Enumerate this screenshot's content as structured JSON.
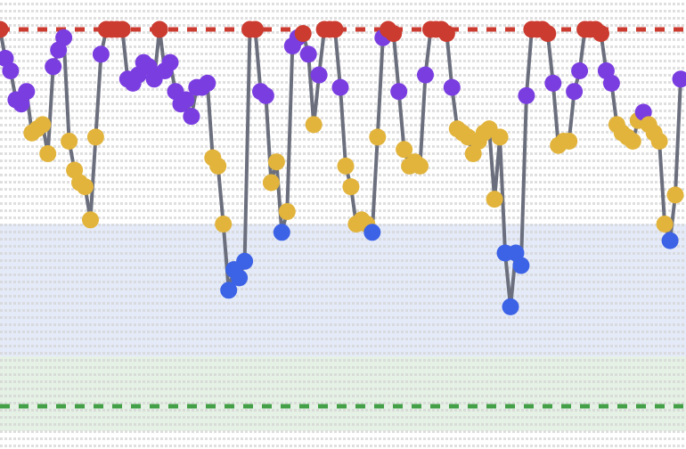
{
  "chart_data": {
    "type": "line",
    "title": "",
    "xlabel": "",
    "ylabel": "",
    "grid": false,
    "xlim": [
      0,
      128
    ],
    "ylim": [
      0,
      100
    ],
    "bands": [
      {
        "name": "blue-zone",
        "from": 18,
        "to": 50,
        "color": "#dfe6f7"
      },
      {
        "name": "green-zone",
        "from": 0,
        "to": 18,
        "color": "#e0efdf"
      }
    ],
    "reference_lines": [
      {
        "name": "upper-threshold",
        "y": 97,
        "color": "#cc3b30"
      },
      {
        "name": "lower-threshold",
        "y": 6,
        "color": "#43a047"
      }
    ],
    "category_colors": {
      "top": "#cc3b30",
      "high": "#7a3de0",
      "mid": "#e2b43c",
      "low": "#3c62e6",
      "bottom": "#43a047"
    },
    "line_color": "#6b6f7d",
    "series": [
      {
        "name": "series-1",
        "x": [
          0,
          1,
          2,
          3,
          4,
          5,
          6,
          7,
          8,
          9,
          10,
          11,
          12,
          13,
          14,
          15,
          16,
          17,
          18,
          19,
          20,
          21,
          22,
          23,
          24,
          25,
          26,
          27,
          28,
          29,
          30,
          31,
          32,
          33,
          34,
          35,
          36,
          37,
          38,
          39,
          40,
          41,
          42,
          43,
          44,
          45,
          46,
          47,
          48,
          49,
          50,
          51,
          52,
          53,
          54,
          55,
          56,
          57,
          58,
          59,
          60,
          61,
          62,
          63,
          64,
          65,
          66,
          67,
          68,
          69,
          70,
          71,
          72,
          73,
          74,
          75,
          76,
          77,
          78,
          79,
          80,
          81,
          82,
          83,
          84,
          85,
          86,
          87,
          88,
          89,
          90,
          91,
          92,
          93,
          94,
          95,
          96,
          97,
          98,
          99,
          100,
          101,
          102,
          103,
          104,
          105,
          106,
          107,
          108,
          109,
          110,
          111,
          112,
          113,
          114,
          115,
          116,
          117,
          118,
          119,
          120,
          121,
          122,
          123,
          124,
          125,
          126,
          127,
          128
        ],
        "y": [
          97,
          90,
          87,
          80,
          79,
          82,
          72,
          73,
          74,
          67,
          88,
          92,
          95,
          70,
          63,
          60,
          59,
          51,
          71,
          91,
          97,
          97,
          97,
          97,
          85,
          84,
          86,
          89,
          88,
          85,
          97,
          87,
          89,
          82,
          79,
          80,
          76,
          83,
          83,
          84,
          66,
          64,
          50,
          34,
          39,
          37,
          41,
          97,
          97,
          82,
          81,
          60,
          65,
          48,
          53,
          93,
          95,
          96,
          91,
          74,
          86,
          97,
          97,
          97,
          83,
          64,
          59,
          50,
          51,
          50,
          48,
          71,
          95,
          97,
          96,
          82,
          68,
          64,
          65,
          64,
          86,
          97,
          97,
          97,
          96,
          83,
          73,
          72,
          71,
          67,
          70,
          72,
          73,
          56,
          71,
          43,
          30,
          43,
          40,
          81,
          97,
          97,
          97,
          96,
          84,
          69,
          70,
          70,
          82,
          87,
          97,
          97,
          97,
          96,
          87,
          84,
          74,
          72,
          71,
          70,
          75,
          77,
          74,
          72,
          70,
          50,
          46,
          57,
          85
        ]
      }
    ]
  }
}
